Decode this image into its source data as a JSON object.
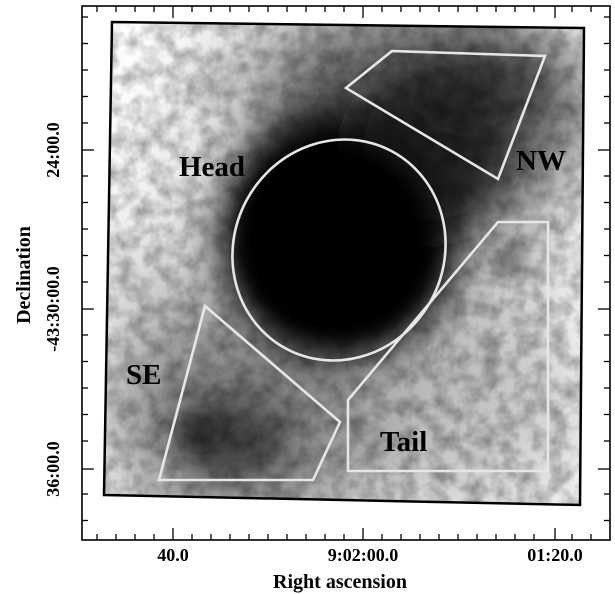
{
  "figure": {
    "x_axis_title": "Right ascension",
    "y_axis_title": "Declination",
    "x_tick_labels": [
      "40.0",
      "9:02:00.0",
      "01:20.0"
    ],
    "y_tick_labels": [
      "24:00.0",
      "-43:30:00.0",
      "36:00.0"
    ],
    "region_labels": {
      "head": "Head",
      "nw": "NW",
      "se": "SE",
      "tail": "Tail"
    },
    "colors": {
      "frame": "#000000",
      "region_outline": "#e6e6e6",
      "emission": "#000000",
      "background": "#ffffff"
    }
  }
}
